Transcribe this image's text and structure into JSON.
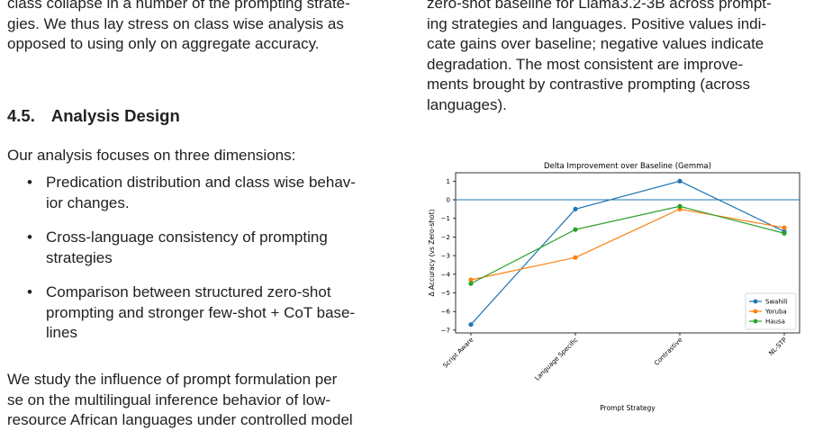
{
  "left_column": {
    "top_paragraph_lines": [
      "class collapse in a number of the prompting strate-",
      "gies. We thus lay stress on class wise analysis as",
      "opposed to using only on aggregate accuracy."
    ],
    "section_number": "4.5.",
    "section_title": "Analysis Design",
    "intro": "Our analysis focuses on three dimensions:",
    "bullets": [
      [
        "Predication distribution and class wise behav-",
        "ior changes."
      ],
      [
        "Cross-language consistency of prompting",
        "strategies"
      ],
      [
        "Comparison between structured zero-shot",
        "prompting and stronger few-shot + CoT base-",
        "lines"
      ]
    ],
    "bullet_symbol": "•",
    "bottom_paragraph_lines": [
      "We study the influence of prompt formulation per",
      "se on the multilingual inference behavior of low-",
      "resource African languages under controlled model"
    ]
  },
  "right_column": {
    "caption_lines": [
      "zero-shot baseline for Llama3.2-3B across prompt-",
      "ing strategies and languages. Positive values indi-",
      "cate gains over baseline; negative values indicate",
      "degradation.  The most consistent are improve-",
      "ments brought by contrastive prompting (across",
      "languages)."
    ]
  },
  "chart_data": {
    "type": "line",
    "title": "Delta Improvement over Baseline (Gemma)",
    "xlabel": "Prompt Strategy",
    "ylabel": "Δ Accuracy (vs Zero-shot)",
    "categories": [
      "Script Aware",
      "Language Specific",
      "Contrastive",
      "NL-STP"
    ],
    "ylim": [
      -7.15,
      1.45
    ],
    "yticks": [
      1,
      0,
      -1,
      -2,
      -3,
      -4,
      -5,
      -6,
      -7
    ],
    "baseline": 0,
    "legend_position": "lower-right",
    "grid": false,
    "series": [
      {
        "name": "Swahili",
        "color": "#1f77b4",
        "values": [
          -6.7,
          -0.5,
          1.0,
          -1.7
        ]
      },
      {
        "name": "Yoruba",
        "color": "#ff7f0e",
        "values": [
          -4.3,
          -3.1,
          -0.5,
          -1.5
        ]
      },
      {
        "name": "Hausa",
        "color": "#2ca02c",
        "values": [
          -4.5,
          -1.6,
          -0.35,
          -1.8
        ]
      }
    ]
  }
}
